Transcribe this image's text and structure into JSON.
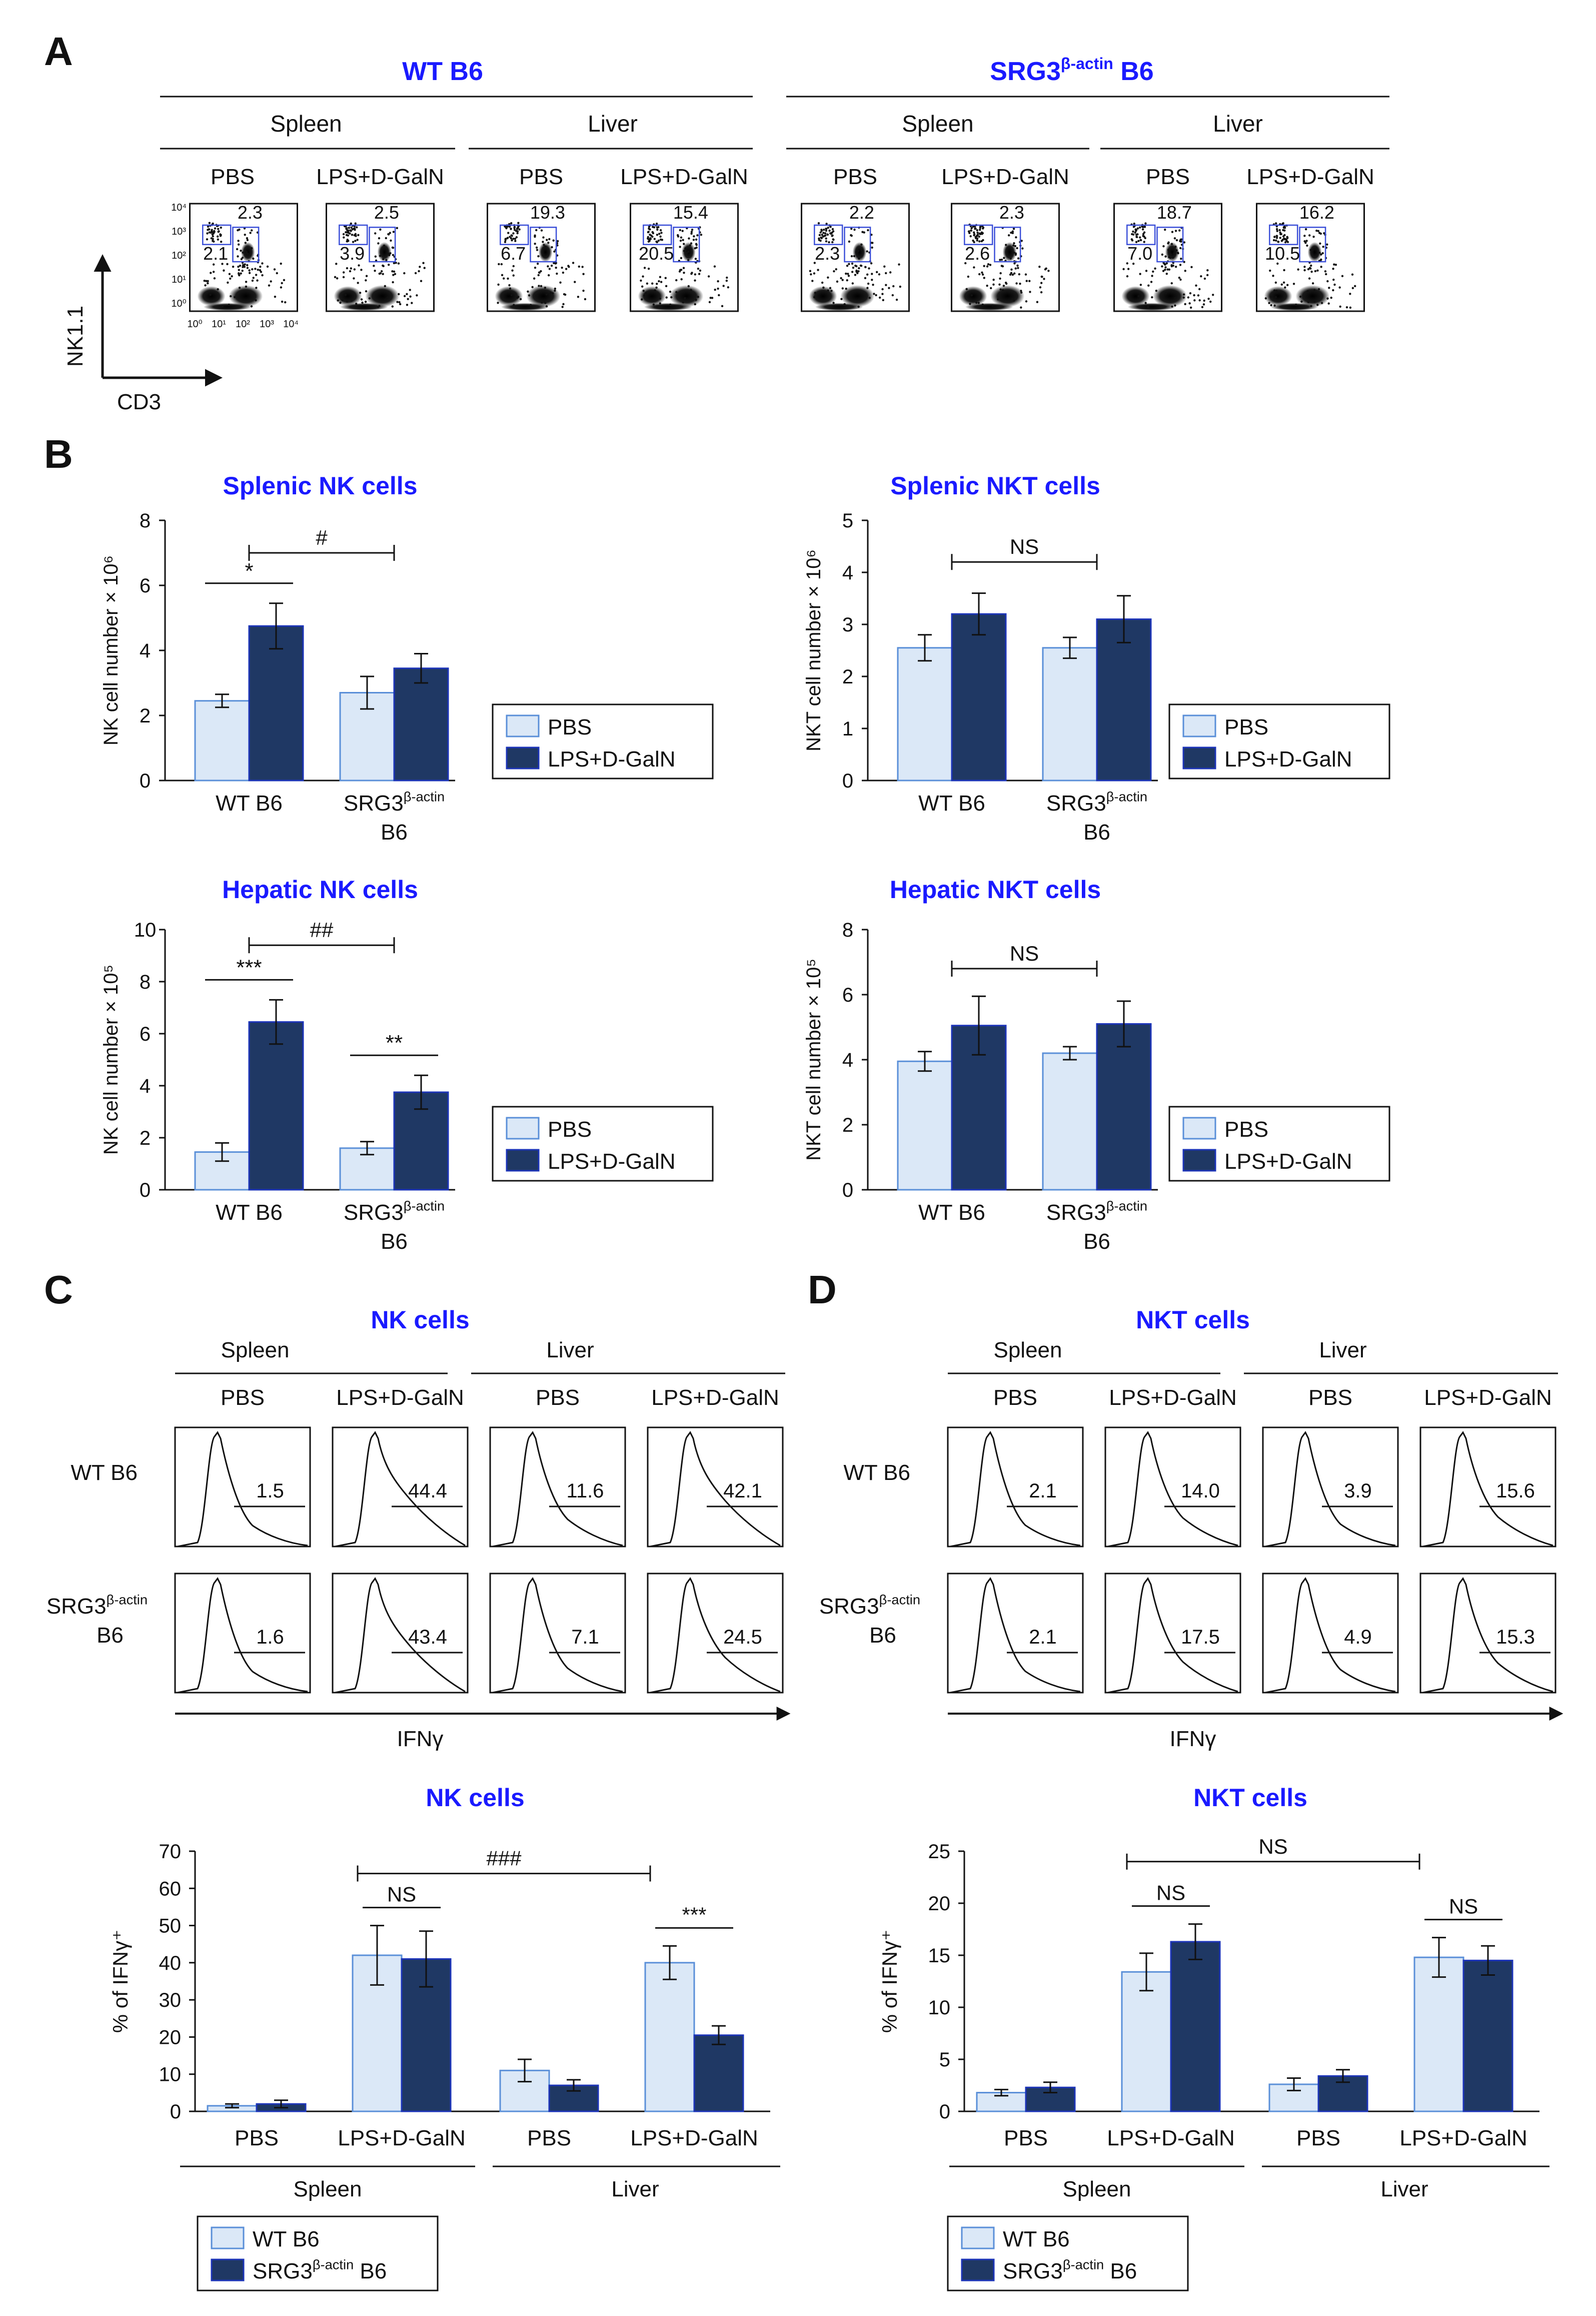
{
  "colors": {
    "accent_blue": "#1a1aff",
    "pbs_fill": "#dbe8f7",
    "pbs_stroke": "#5a8fd8",
    "lps_fill": "#1f3864",
    "lps_stroke": "#1c34b8",
    "gate_box": "#3b4fd8",
    "text": "#111111"
  },
  "panel_A": {
    "label": "A",
    "groups": [
      {
        "title": "WT B6"
      },
      {
        "title": "SRG3",
        "title_sup": "β-actin",
        "title_suffix": " B6"
      }
    ],
    "tissues": [
      "Spleen",
      "Liver",
      "Spleen",
      "Liver"
    ],
    "treatments": [
      "PBS",
      "LPS+D-GalN",
      "PBS",
      "LPS+D-GalN",
      "PBS",
      "LPS+D-GalN",
      "PBS",
      "LPS+D-GalN"
    ],
    "plots": [
      {
        "nkt": "2.3",
        "nk": "2.1"
      },
      {
        "nkt": "2.5",
        "nk": "3.9"
      },
      {
        "nkt": "19.3",
        "nk": "6.7"
      },
      {
        "nkt": "15.4",
        "nk": "20.5"
      },
      {
        "nkt": "2.2",
        "nk": "2.3"
      },
      {
        "nkt": "2.3",
        "nk": "2.6"
      },
      {
        "nkt": "18.7",
        "nk": "7.0"
      },
      {
        "nkt": "16.2",
        "nk": "10.5"
      }
    ],
    "y_ticks": [
      "10⁴",
      "10³",
      "10²",
      "10¹",
      "10⁰"
    ],
    "x_ticks": [
      "10⁰",
      "10¹",
      "10²",
      "10³",
      "10⁴"
    ],
    "y_axis": "NK1.1",
    "x_axis": "CD3"
  },
  "panel_B": {
    "label": "B",
    "legend": [
      "PBS",
      "LPS+D-GalN"
    ],
    "cat_wt": "WT B6",
    "cat_srg_main": "SRG3",
    "cat_srg_sup": "β-actin",
    "cat_srg_line2": "B6"
  },
  "panel_C": {
    "label": "C",
    "title": "NK cells",
    "tissues": [
      "Spleen",
      "Liver"
    ],
    "treatments": [
      "PBS",
      "LPS+D-GalN",
      "PBS",
      "LPS+D-GalN"
    ],
    "row_wt": "WT B6",
    "row_srg_main": "SRG3",
    "row_srg_sup": "β-actin",
    "row_srg_line2": "B6",
    "wt_values": [
      "1.5",
      "44.4",
      "11.6",
      "42.1"
    ],
    "srg_values": [
      "1.6",
      "43.4",
      "7.1",
      "24.5"
    ],
    "x_axis": "IFNγ"
  },
  "panel_D": {
    "label": "D",
    "title": "NKT cells",
    "tissues": [
      "Spleen",
      "Liver"
    ],
    "treatments": [
      "PBS",
      "LPS+D-GalN",
      "PBS",
      "LPS+D-GalN"
    ],
    "row_wt": "WT B6",
    "row_srg_main": "SRG3",
    "row_srg_sup": "β-actin",
    "row_srg_line2": "B6",
    "wt_values": [
      "2.1",
      "14.0",
      "3.9",
      "15.6"
    ],
    "srg_values": [
      "2.1",
      "17.5",
      "4.9",
      "15.3"
    ],
    "x_axis": "IFNγ"
  },
  "bar_legend_CD": {
    "wt": "WT B6",
    "srg_main": "SRG3",
    "srg_sup": "β-actin",
    "srg_suffix": " B6"
  },
  "chart_data": [
    {
      "id": "splenic_nk",
      "type": "bar",
      "title": "Splenic NK cells",
      "ylabel": "NK cell number",
      "yexp": "× 10⁶",
      "ylim": [
        0,
        8
      ],
      "yticks": [
        0,
        2,
        4,
        6,
        8
      ],
      "categories": [
        "WT B6",
        "SRG3β-actin B6"
      ],
      "series": [
        {
          "name": "PBS",
          "values": [
            2.45,
            2.7
          ],
          "errors": [
            0.2,
            0.5
          ]
        },
        {
          "name": "LPS+D-GalN",
          "values": [
            4.75,
            3.45
          ],
          "errors": [
            0.7,
            0.45
          ]
        }
      ],
      "annotations": [
        {
          "text": "*",
          "kind": "within",
          "group": 0
        },
        {
          "text": "#",
          "kind": "between",
          "y": 7.0
        }
      ]
    },
    {
      "id": "splenic_nkt",
      "type": "bar",
      "title": "Splenic NKT cells",
      "ylabel": "NKT cell number",
      "yexp": "× 10⁶",
      "ylim": [
        0,
        5
      ],
      "yticks": [
        0,
        1,
        2,
        3,
        4,
        5
      ],
      "categories": [
        "WT B6",
        "SRG3β-actin B6"
      ],
      "series": [
        {
          "name": "PBS",
          "values": [
            2.55,
            2.55
          ],
          "errors": [
            0.25,
            0.2
          ]
        },
        {
          "name": "LPS+D-GalN",
          "values": [
            3.2,
            3.1
          ],
          "errors": [
            0.4,
            0.45
          ]
        }
      ],
      "annotations": [
        {
          "text": "NS",
          "kind": "between",
          "y": 4.2
        }
      ]
    },
    {
      "id": "hepatic_nk",
      "type": "bar",
      "title": "Hepatic NK cells",
      "ylabel": "NK cell number",
      "yexp": "× 10⁵",
      "ylim": [
        0,
        10
      ],
      "yticks": [
        0,
        2,
        4,
        6,
        8,
        10
      ],
      "categories": [
        "WT B6",
        "SRG3β-actin B6"
      ],
      "series": [
        {
          "name": "PBS",
          "values": [
            1.45,
            1.6
          ],
          "errors": [
            0.35,
            0.25
          ]
        },
        {
          "name": "LPS+D-GalN",
          "values": [
            6.45,
            3.75
          ],
          "errors": [
            0.85,
            0.65
          ]
        }
      ],
      "annotations": [
        {
          "text": "***",
          "kind": "within",
          "group": 0
        },
        {
          "text": "**",
          "kind": "within",
          "group": 1
        },
        {
          "text": "##",
          "kind": "between",
          "y": 9.4
        }
      ]
    },
    {
      "id": "hepatic_nkt",
      "type": "bar",
      "title": "Hepatic NKT cells",
      "ylabel": "NKT cell number",
      "yexp": "× 10⁵",
      "ylim": [
        0,
        8
      ],
      "yticks": [
        0,
        2,
        4,
        6,
        8
      ],
      "categories": [
        "WT B6",
        "SRG3β-actin B6"
      ],
      "series": [
        {
          "name": "PBS",
          "values": [
            3.95,
            4.2
          ],
          "errors": [
            0.3,
            0.2
          ]
        },
        {
          "name": "LPS+D-GalN",
          "values": [
            5.05,
            5.1
          ],
          "errors": [
            0.9,
            0.7
          ]
        }
      ],
      "annotations": [
        {
          "text": "NS",
          "kind": "between",
          "y": 6.8
        }
      ]
    },
    {
      "id": "nk_ifng",
      "type": "bar",
      "title": "NK cells",
      "ylabel": "% of IFNγ⁺",
      "ylim": [
        0,
        70
      ],
      "yticks": [
        0,
        10,
        20,
        30,
        40,
        50,
        60,
        70
      ],
      "categories": [
        "PBS",
        "LPS+D-GalN",
        "PBS",
        "LPS+D-GalN"
      ],
      "tissues": [
        "Spleen",
        "Liver"
      ],
      "series": [
        {
          "name": "WT B6",
          "values": [
            1.5,
            42.0,
            11.0,
            40.0
          ],
          "errors": [
            0.5,
            8.0,
            3.0,
            4.5
          ]
        },
        {
          "name": "SRG3β-actin B6",
          "values": [
            2.0,
            41.0,
            7.0,
            20.5
          ],
          "errors": [
            1.0,
            7.5,
            1.5,
            2.5
          ]
        }
      ],
      "annotations": [
        {
          "text": "###",
          "kind": "span",
          "from": 1,
          "to": 3,
          "y": 64
        },
        {
          "text": "NS",
          "kind": "within",
          "group": 1
        },
        {
          "text": "***",
          "kind": "within",
          "group": 3
        }
      ]
    },
    {
      "id": "nkt_ifng",
      "type": "bar",
      "title": "NKT cells",
      "ylabel": "% of IFNγ⁺",
      "ylim": [
        0,
        25
      ],
      "yticks": [
        0,
        5,
        10,
        15,
        20,
        25
      ],
      "categories": [
        "PBS",
        "LPS+D-GalN",
        "PBS",
        "LPS+D-GalN"
      ],
      "tissues": [
        "Spleen",
        "Liver"
      ],
      "series": [
        {
          "name": "WT B6",
          "values": [
            1.8,
            13.4,
            2.6,
            14.8
          ],
          "errors": [
            0.3,
            1.8,
            0.6,
            1.9
          ]
        },
        {
          "name": "SRG3β-actin B6",
          "values": [
            2.3,
            16.3,
            3.4,
            14.5
          ],
          "errors": [
            0.5,
            1.7,
            0.6,
            1.4
          ]
        }
      ],
      "annotations": [
        {
          "text": "NS",
          "kind": "span",
          "from": 1,
          "to": 3,
          "y": 24.0
        },
        {
          "text": "NS",
          "kind": "within",
          "group": 1
        },
        {
          "text": "NS",
          "kind": "within",
          "group": 3
        }
      ]
    }
  ]
}
